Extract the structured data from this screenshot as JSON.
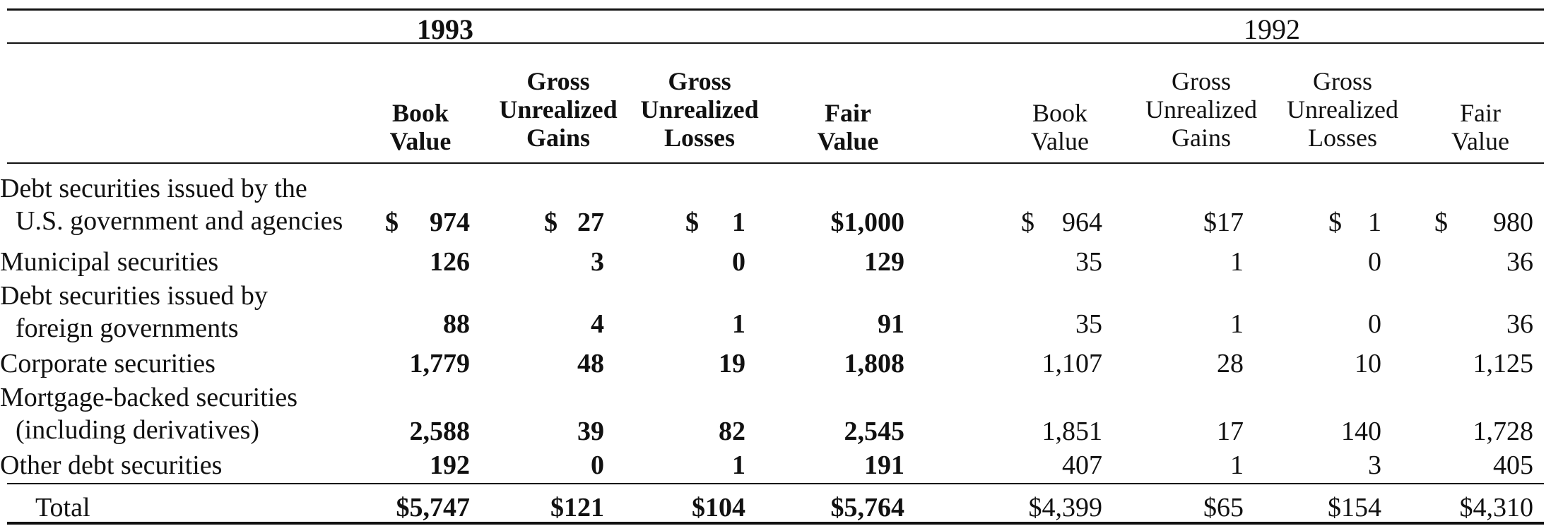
{
  "table": {
    "years": {
      "current": "1993",
      "prior": "1992"
    },
    "headers_1993": [
      [
        "Book",
        "Value"
      ],
      [
        "Gross",
        "Unrealized",
        "Gains"
      ],
      [
        "Gross",
        "Unrealized",
        "Losses"
      ],
      [
        "Fair",
        "Value"
      ]
    ],
    "headers_1992": [
      [
        "Book",
        "Value"
      ],
      [
        "Gross",
        "Unrealized",
        "Gains"
      ],
      [
        "Gross",
        "Unrealized",
        "Losses"
      ],
      [
        "Fair",
        "Value"
      ]
    ],
    "rows": [
      {
        "label_lines": [
          "Debt securities issued by the",
          "U.S. government and agencies"
        ],
        "v1993": [
          "974",
          "27",
          "1",
          "$1,000"
        ],
        "cur1993": [
          "$",
          "$",
          "$",
          ""
        ],
        "v1992": [
          "964",
          "$17",
          "1",
          "980"
        ],
        "cur1992": [
          "$",
          "",
          "$",
          "$"
        ]
      },
      {
        "label_lines": [
          "Municipal securities"
        ],
        "v1993": [
          "126",
          "3",
          "0",
          "129"
        ],
        "cur1993": [
          "",
          "",
          "",
          ""
        ],
        "v1992": [
          "35",
          "1",
          "0",
          "36"
        ],
        "cur1992": [
          "",
          "",
          "",
          ""
        ]
      },
      {
        "label_lines": [
          "Debt securities issued by",
          "foreign  governments"
        ],
        "v1993": [
          "88",
          "4",
          "1",
          "91"
        ],
        "cur1993": [
          "",
          "",
          "",
          ""
        ],
        "v1992": [
          "35",
          "1",
          "0",
          "36"
        ],
        "cur1992": [
          "",
          "",
          "",
          ""
        ]
      },
      {
        "label_lines": [
          "Corporate securities"
        ],
        "v1993": [
          "1,779",
          "48",
          "19",
          "1,808"
        ],
        "cur1993": [
          "",
          "",
          "",
          ""
        ],
        "v1992": [
          "1,107",
          "28",
          "10",
          "1,125"
        ],
        "cur1992": [
          "",
          "",
          "",
          ""
        ]
      },
      {
        "label_lines": [
          "Mortgage-backed securities",
          "(including derivatives)"
        ],
        "v1993": [
          "2,588",
          "39",
          "82",
          "2,545"
        ],
        "cur1993": [
          "",
          "",
          "",
          ""
        ],
        "v1992": [
          "1,851",
          "17",
          "140",
          "1,728"
        ],
        "cur1992": [
          "",
          "",
          "",
          ""
        ]
      },
      {
        "label_lines": [
          "Other debt securities"
        ],
        "v1993": [
          "192",
          "0",
          "1",
          "191"
        ],
        "cur1993": [
          "",
          "",
          "",
          ""
        ],
        "v1992": [
          "407",
          "1",
          "3",
          "405"
        ],
        "cur1992": [
          "",
          "",
          "",
          ""
        ]
      }
    ],
    "total": {
      "label": "Total",
      "v1993": [
        "$5,747",
        "$121",
        "$104",
        "$5,764"
      ],
      "v1992": [
        "$4,399",
        "$65",
        "$154",
        "$4,310"
      ]
    }
  }
}
